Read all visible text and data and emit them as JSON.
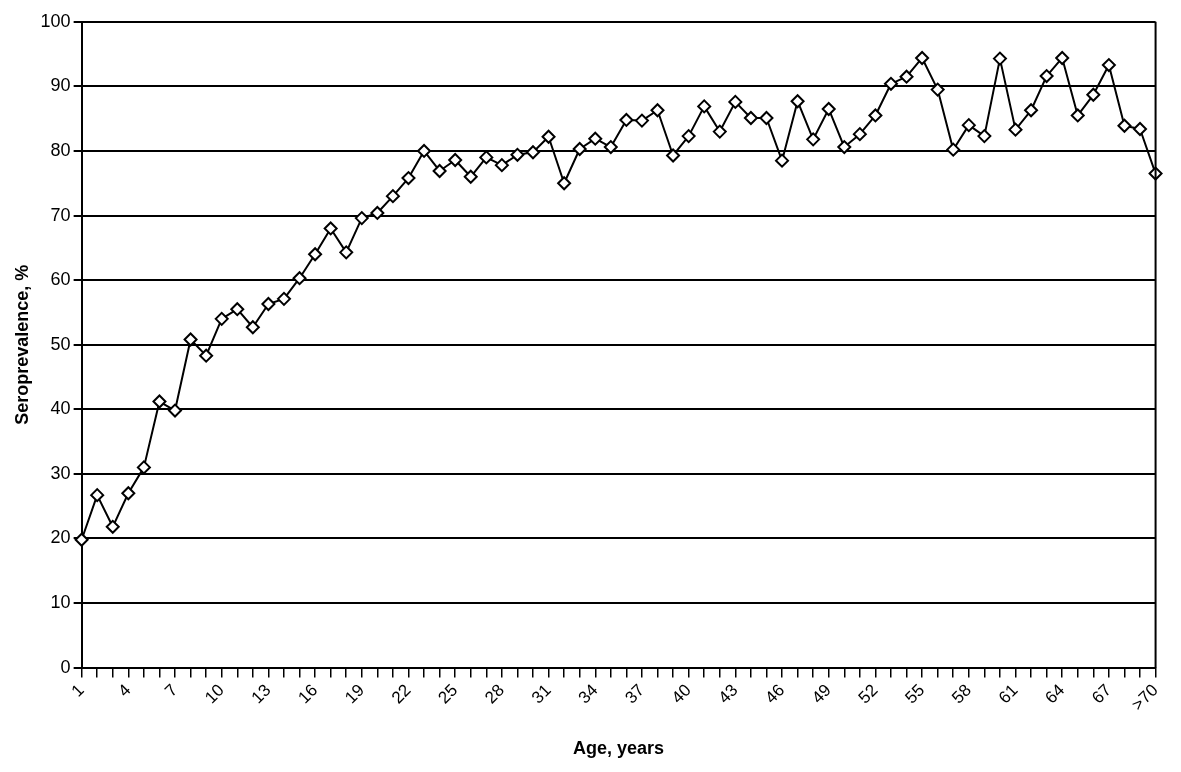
{
  "chart_data": {
    "type": "line",
    "xlabel": "Age, years",
    "ylabel": "Seroprevalence, %",
    "categories": [
      "1",
      null,
      null,
      "4",
      null,
      null,
      "7",
      null,
      null,
      "10",
      null,
      null,
      "13",
      null,
      null,
      "16",
      null,
      null,
      "19",
      null,
      null,
      "22",
      null,
      null,
      "25",
      null,
      null,
      "28",
      null,
      null,
      "31",
      null,
      null,
      "34",
      null,
      null,
      "37",
      null,
      null,
      "40",
      null,
      null,
      "43",
      null,
      null,
      "46",
      null,
      null,
      "49",
      null,
      null,
      "52",
      null,
      null,
      "55",
      null,
      null,
      "58",
      null,
      null,
      "61",
      null,
      null,
      "64",
      null,
      null,
      "67",
      null,
      null,
      ">70"
    ],
    "series": [
      {
        "color": "#000000",
        "values": [
          19.8,
          26.7,
          21.8,
          27,
          31,
          41.2,
          39.8,
          50.8,
          48.3,
          54,
          55.5,
          52.7,
          56.3,
          57.1,
          60.3,
          64,
          68,
          64.3,
          69.6,
          70.4,
          73,
          75.8,
          80,
          76.9,
          78.6,
          76,
          79,
          77.8,
          79.4,
          79.8,
          82.2,
          75,
          80.3,
          81.9,
          80.6,
          84.8,
          84.7,
          86.3,
          79.3,
          82.3,
          86.9,
          83,
          87.6,
          85.1,
          85.1,
          78.5,
          87.7,
          81.8,
          86.5,
          80.6,
          82.6,
          85.5,
          90.4,
          91.5,
          94.4,
          89.5,
          80.2,
          84,
          82.3,
          94.3,
          83.3,
          86.3,
          91.6,
          94.4,
          85.5,
          88.7,
          93.3,
          83.9,
          83.4,
          76.5
        ]
      }
    ],
    "ylim": [
      0,
      100
    ],
    "yticks": [
      0,
      10,
      20,
      30,
      40,
      50,
      60,
      70,
      80,
      90,
      100
    ],
    "grid": "y",
    "legend": false,
    "marker": "diamond",
    "line_style": "solid"
  }
}
